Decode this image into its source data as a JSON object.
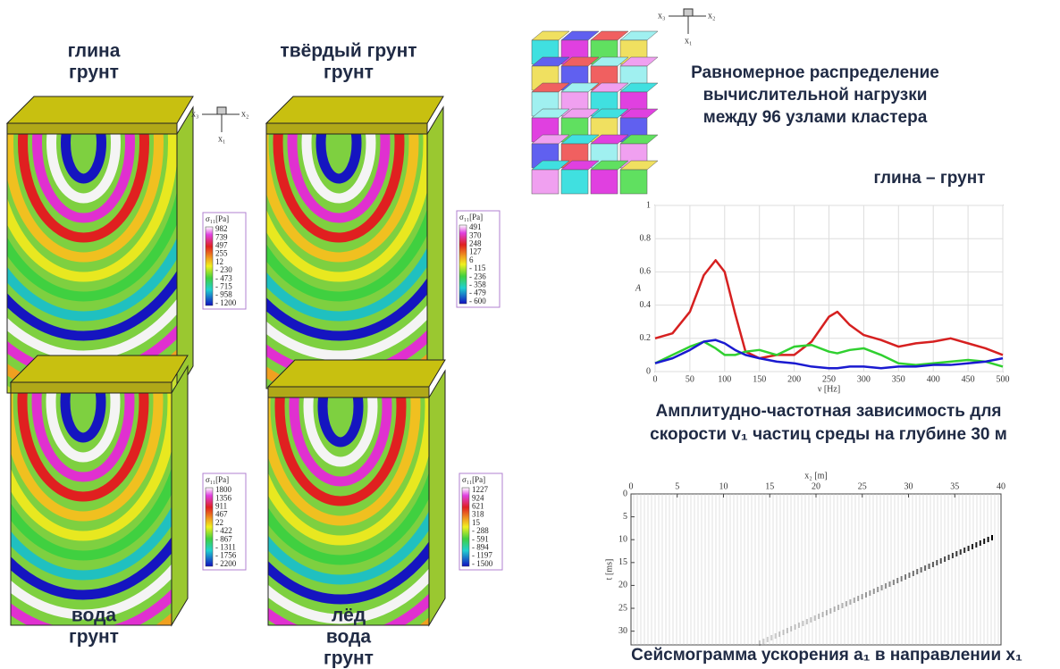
{
  "panels": [
    {
      "label": [
        "глина",
        "грунт"
      ],
      "colorbar": {
        "title": "σ₁₁[Pa]",
        "ticks": [
          "982",
          "739",
          "497",
          "255",
          "12",
          "- 230",
          "- 473",
          "- 715",
          "- 958",
          "- 1200"
        ]
      }
    },
    {
      "label": [
        "твёрдый грунт",
        "грунт"
      ],
      "colorbar": {
        "title": "σ₁₁[Pa]",
        "ticks": [
          "491",
          "370",
          "248",
          "127",
          "6",
          "- 115",
          "- 236",
          "- 358",
          "- 479",
          "- 600"
        ]
      }
    },
    {
      "label": [
        "вода",
        "грунт"
      ],
      "colorbar": {
        "title": "σ₁₁[Pa]",
        "ticks": [
          "1800",
          "1356",
          "911",
          "467",
          "22",
          "- 422",
          "- 867",
          "- 1311",
          "- 1756",
          "- 2200"
        ]
      }
    },
    {
      "label": [
        "лёд",
        "вода",
        "грунт"
      ],
      "colorbar": {
        "title": "σ₁₁[Pa]",
        "ticks": [
          "1227",
          "924",
          "621",
          "318",
          "15",
          "- 288",
          "- 591",
          "- 894",
          "- 1197",
          "- 1500"
        ]
      }
    }
  ],
  "axes_icon": {
    "x3": "x₃",
    "x2": "x₂",
    "x1": "x₁"
  },
  "cluster": {
    "caption": [
      "Равномерное распределение",
      "вычислительной нагрузки",
      "между 96 узлами кластера"
    ]
  },
  "chart_data": [
    {
      "type": "line",
      "title": "глина – грунт",
      "xlabel": "ν [Hz]",
      "ylabel": "A",
      "caption": [
        "Амплитудно-частотная зависимость для",
        "скорости v₁ частиц среды на глубине 30 м"
      ],
      "x": [
        0,
        25,
        50,
        70,
        87,
        100,
        115,
        130,
        150,
        175,
        200,
        225,
        250,
        262,
        280,
        300,
        325,
        350,
        375,
        400,
        425,
        450,
        475,
        500
      ],
      "series": [
        {
          "color": "#d62020",
          "values": [
            0.2,
            0.23,
            0.36,
            0.58,
            0.67,
            0.6,
            0.35,
            0.12,
            0.08,
            0.1,
            0.1,
            0.18,
            0.33,
            0.36,
            0.28,
            0.22,
            0.19,
            0.15,
            0.17,
            0.18,
            0.2,
            0.17,
            0.14,
            0.1
          ]
        },
        {
          "color": "#30d030",
          "values": [
            0.05,
            0.1,
            0.15,
            0.18,
            0.14,
            0.1,
            0.1,
            0.12,
            0.13,
            0.1,
            0.15,
            0.16,
            0.12,
            0.11,
            0.13,
            0.14,
            0.1,
            0.05,
            0.04,
            0.05,
            0.06,
            0.07,
            0.06,
            0.03
          ]
        },
        {
          "color": "#1a1ad0",
          "values": [
            0.05,
            0.08,
            0.13,
            0.18,
            0.19,
            0.17,
            0.13,
            0.1,
            0.08,
            0.06,
            0.05,
            0.03,
            0.02,
            0.02,
            0.03,
            0.03,
            0.02,
            0.03,
            0.03,
            0.04,
            0.04,
            0.05,
            0.06,
            0.08
          ]
        }
      ],
      "xlim": [
        0,
        500
      ],
      "xticks": [
        0,
        50,
        100,
        150,
        200,
        250,
        300,
        350,
        400,
        450,
        500
      ],
      "ylim": [
        0,
        1
      ],
      "yticks": [
        0,
        0.2,
        0.4,
        0.6,
        0.8,
        1
      ],
      "grid": true
    },
    {
      "type": "seismogram",
      "xlabel": "x₂ [m]",
      "ylabel": "t [ms]",
      "caption": [
        "Сейсмограмма ускорения a₁ в направлении x₁"
      ],
      "xlim": [
        0,
        40
      ],
      "xticks": [
        0,
        5,
        10,
        15,
        20,
        25,
        30,
        35,
        40
      ],
      "ylim": [
        0,
        33
      ],
      "yticks": [
        0,
        5,
        10,
        15,
        20,
        25,
        30
      ]
    }
  ]
}
